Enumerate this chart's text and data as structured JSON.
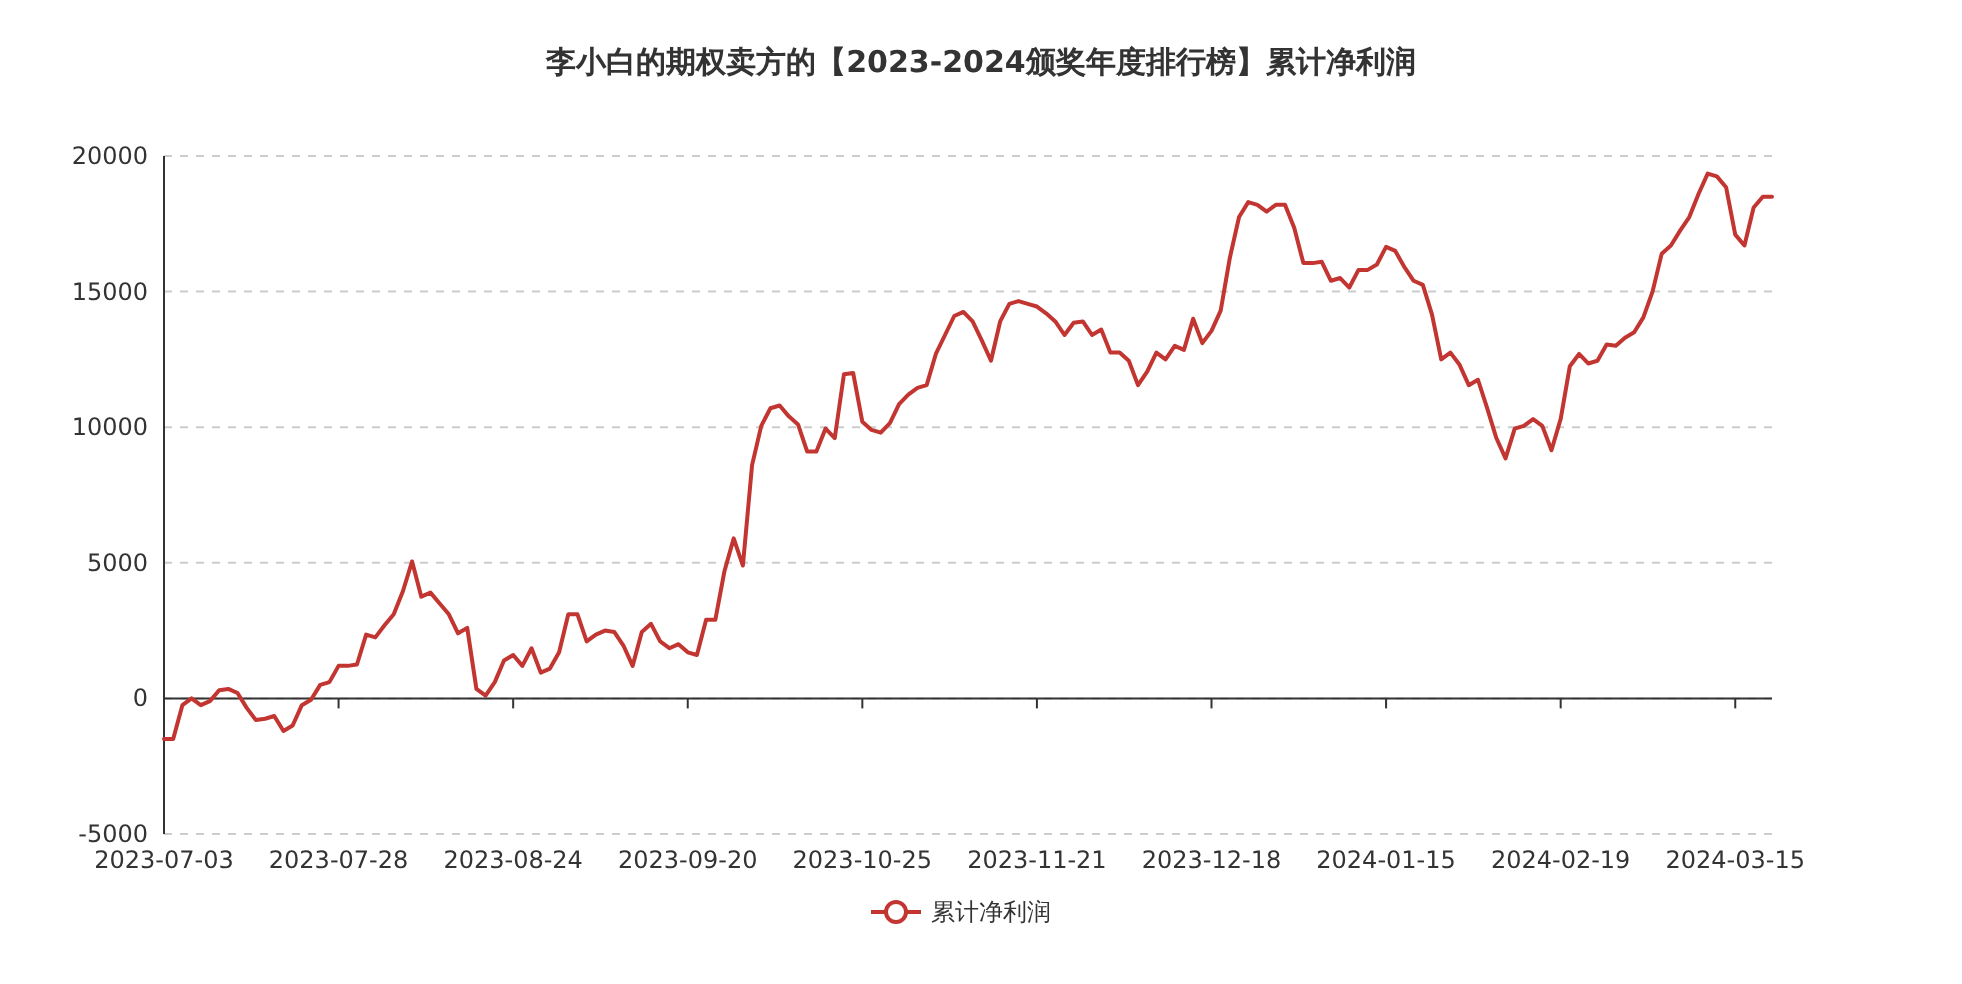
{
  "chart_data": {
    "type": "line",
    "title": "李小白的期权卖方的【2023-2024颁奖年度排行榜】累计净利润",
    "categories": [
      "2023-07-03",
      null,
      null,
      null,
      null,
      null,
      null,
      null,
      null,
      null,
      null,
      null,
      null,
      null,
      null,
      null,
      null,
      null,
      null,
      "2023-07-28",
      null,
      null,
      null,
      null,
      null,
      null,
      null,
      null,
      null,
      null,
      null,
      null,
      null,
      null,
      null,
      null,
      null,
      null,
      "2023-08-24",
      null,
      null,
      null,
      null,
      null,
      null,
      null,
      null,
      null,
      null,
      null,
      null,
      null,
      null,
      null,
      null,
      null,
      null,
      "2023-09-20",
      null,
      null,
      null,
      null,
      null,
      null,
      null,
      null,
      null,
      null,
      null,
      null,
      null,
      null,
      null,
      null,
      null,
      null,
      "2023-10-25",
      null,
      null,
      null,
      null,
      null,
      null,
      null,
      null,
      null,
      null,
      null,
      null,
      null,
      null,
      null,
      null,
      null,
      null,
      "2023-11-21",
      null,
      null,
      null,
      null,
      null,
      null,
      null,
      null,
      null,
      null,
      null,
      null,
      null,
      null,
      null,
      null,
      null,
      null,
      "2023-12-18",
      null,
      null,
      null,
      null,
      null,
      null,
      null,
      null,
      null,
      null,
      null,
      null,
      null,
      null,
      null,
      null,
      null,
      null,
      "2024-01-15",
      null,
      null,
      null,
      null,
      null,
      null,
      null,
      null,
      null,
      null,
      null,
      null,
      null,
      null,
      null,
      null,
      null,
      null,
      "2024-02-19",
      null,
      null,
      null,
      null,
      null,
      null,
      null,
      null,
      null,
      null,
      null,
      null,
      null,
      null,
      null,
      null,
      null,
      null,
      "2024-03-15",
      null,
      null,
      null,
      null
    ],
    "series": [
      {
        "name": "累计净利润",
        "color": "#c23531",
        "values": [
          -1500,
          -1500,
          -250,
          0,
          -250,
          -100,
          300,
          350,
          200,
          -350,
          -800,
          -750,
          -650,
          -1200,
          -1000,
          -250,
          -50,
          500,
          600,
          1200,
          1200,
          1250,
          2350,
          2250,
          2700,
          3100,
          3950,
          5050,
          3750,
          3900,
          3500,
          3100,
          2400,
          2600,
          350,
          100,
          600,
          1400,
          1600,
          1200,
          1850,
          950,
          1100,
          1700,
          3100,
          3100,
          2100,
          2350,
          2500,
          2450,
          1950,
          1200,
          2450,
          2750,
          2100,
          1850,
          2000,
          1700,
          1600,
          2900,
          2900,
          4700,
          5900,
          4900,
          8600,
          10050,
          10700,
          10800,
          10400,
          10100,
          9100,
          9100,
          9950,
          9600,
          11950,
          12000,
          10200,
          9900,
          9800,
          10150,
          10850,
          11200,
          11450,
          11550,
          12700,
          13400,
          14100,
          14250,
          13900,
          13200,
          12450,
          13900,
          14550,
          14650,
          14550,
          14450,
          14200,
          13900,
          13400,
          13850,
          13900,
          13400,
          13600,
          12750,
          12750,
          12450,
          11550,
          12050,
          12750,
          12500,
          13000,
          12850,
          14000,
          13100,
          13550,
          14300,
          16250,
          17750,
          18300,
          18200,
          17950,
          18200,
          18200,
          17350,
          16050,
          16050,
          16100,
          15400,
          15500,
          15150,
          15800,
          15800,
          16000,
          16650,
          16500,
          15900,
          15400,
          15250,
          14150,
          12500,
          12750,
          12300,
          11550,
          11750,
          10700,
          9600,
          8850,
          9950,
          10050,
          10300,
          10050,
          9150,
          10300,
          12250,
          12700,
          12350,
          12450,
          13050,
          13000,
          13300,
          13500,
          14050,
          15000,
          16400,
          16700,
          17250,
          17750,
          18600,
          19350,
          19250,
          18850,
          17100,
          16700,
          18100,
          18500,
          18500
        ]
      }
    ],
    "ylim": [
      -5000,
      20000
    ],
    "yticks": [
      -5000,
      0,
      5000,
      10000,
      15000,
      20000
    ],
    "grid": "y",
    "legend": "bottom"
  }
}
